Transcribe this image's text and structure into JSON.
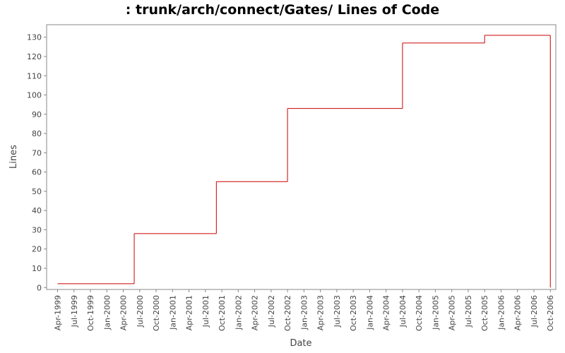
{
  "chart_data": {
    "type": "step",
    "title": ": trunk/arch/connect/Gates/ Lines of Code",
    "x_label": "Date",
    "y_label": "Lines",
    "x": [
      "1999-04",
      "2000-06",
      "2001-09",
      "2002-10",
      "2004-07",
      "2005-10",
      "2006-10"
    ],
    "series": [
      {
        "name": "Lines",
        "color": "#cc0000",
        "values": [
          2,
          28,
          55,
          93,
          127,
          131,
          0
        ]
      }
    ],
    "xlim": [
      "1999-02",
      "2006-11"
    ],
    "xticks": [
      {
        "value": "1999-04",
        "label": "Apr-1999"
      },
      {
        "value": "1999-07",
        "label": "Jul-1999"
      },
      {
        "value": "1999-10",
        "label": "Oct-1999"
      },
      {
        "value": "2000-01",
        "label": "Jan-2000"
      },
      {
        "value": "2000-04",
        "label": "Apr-2000"
      },
      {
        "value": "2000-07",
        "label": "Jul-2000"
      },
      {
        "value": "2000-10",
        "label": "Oct-2000"
      },
      {
        "value": "2001-01",
        "label": "Jan-2001"
      },
      {
        "value": "2001-04",
        "label": "Apr-2001"
      },
      {
        "value": "2001-07",
        "label": "Jul-2001"
      },
      {
        "value": "2001-10",
        "label": "Oct-2001"
      },
      {
        "value": "2002-01",
        "label": "Jan-2002"
      },
      {
        "value": "2002-04",
        "label": "Apr-2002"
      },
      {
        "value": "2002-07",
        "label": "Jul-2002"
      },
      {
        "value": "2002-10",
        "label": "Oct-2002"
      },
      {
        "value": "2003-01",
        "label": "Jan-2003"
      },
      {
        "value": "2003-04",
        "label": "Apr-2003"
      },
      {
        "value": "2003-07",
        "label": "Jul-2003"
      },
      {
        "value": "2003-10",
        "label": "Oct-2003"
      },
      {
        "value": "2004-01",
        "label": "Jan-2004"
      },
      {
        "value": "2004-04",
        "label": "Apr-2004"
      },
      {
        "value": "2004-07",
        "label": "Jul-2004"
      },
      {
        "value": "2004-10",
        "label": "Oct-2004"
      },
      {
        "value": "2005-01",
        "label": "Jan-2005"
      },
      {
        "value": "2005-04",
        "label": "Apr-2005"
      },
      {
        "value": "2005-07",
        "label": "Jul-2005"
      },
      {
        "value": "2005-10",
        "label": "Oct-2005"
      },
      {
        "value": "2006-01",
        "label": "Jan-2006"
      },
      {
        "value": "2006-04",
        "label": "Apr-2006"
      },
      {
        "value": "2006-07",
        "label": "Jul-2006"
      },
      {
        "value": "2006-10",
        "label": "Oct-2006"
      }
    ],
    "ylim": [
      -1,
      136.5
    ],
    "yticks": [
      0,
      10,
      20,
      30,
      40,
      50,
      60,
      70,
      80,
      90,
      100,
      110,
      120,
      130
    ],
    "grid": false
  }
}
